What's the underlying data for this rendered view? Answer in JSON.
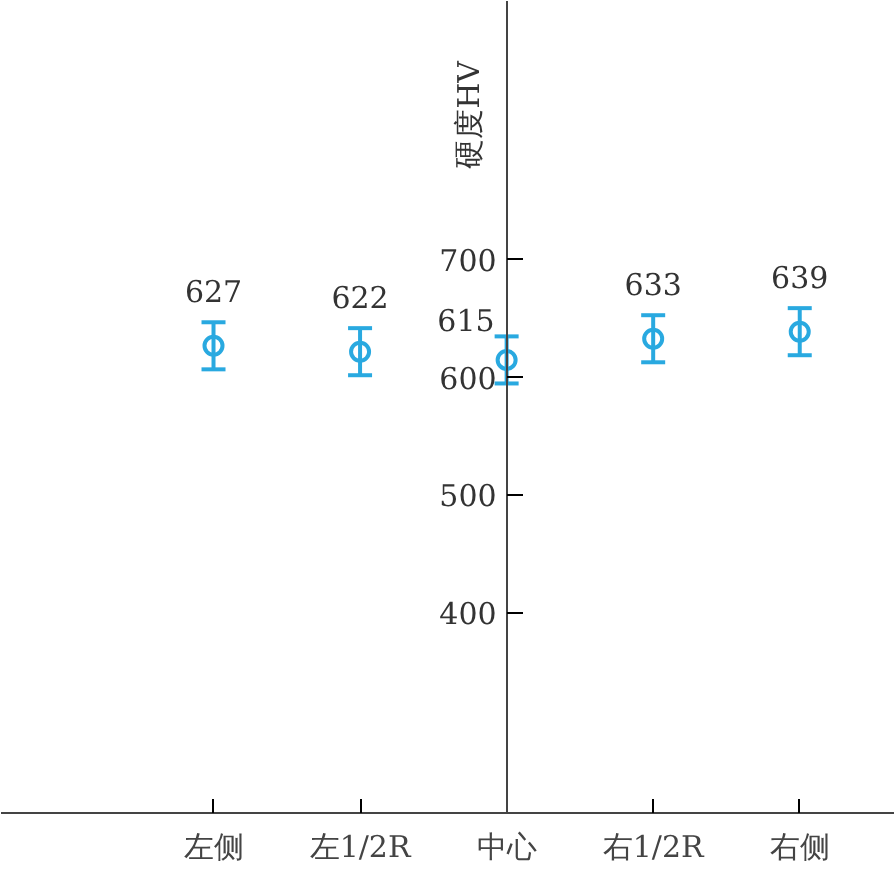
{
  "chart_data": {
    "type": "scatter",
    "ylabel": "硬度HV",
    "categories": [
      "左侧",
      "左1/2R",
      "中心",
      "右1/2R",
      "右侧"
    ],
    "series": [
      {
        "color": "#29a9e0",
        "values": [
          627,
          622,
          615,
          633,
          639
        ],
        "errors": [
          20,
          20,
          20,
          20,
          20
        ]
      }
    ],
    "ylim": [
      230,
      920
    ],
    "yticks": [
      400,
      500,
      600,
      700
    ],
    "data_labels": true,
    "marker": "circle",
    "grid": false
  }
}
